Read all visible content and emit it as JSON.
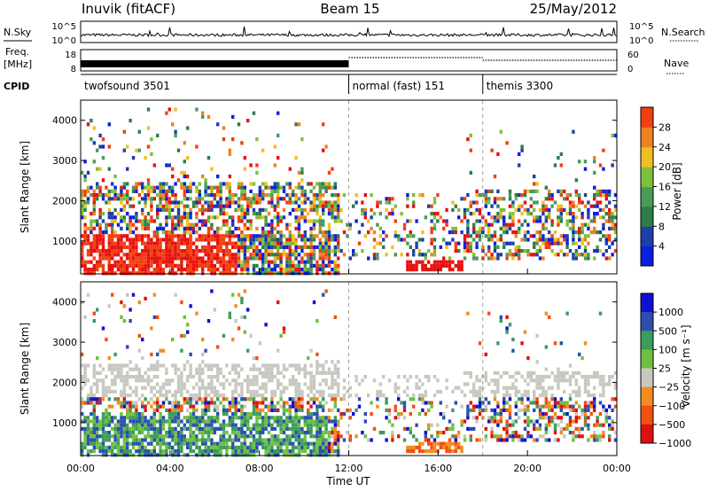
{
  "header": {
    "station": "Inuvik (fitACF)",
    "beam": "Beam 15",
    "date": "25/May/2012"
  },
  "labels": {
    "nsky": "N.Sky",
    "nsearch": "N.Search",
    "freq_line1": "Freq.",
    "freq_line2": "[MHz]",
    "nave": "Nave",
    "cpid": "CPID"
  },
  "colors": {
    "power": [
      "#0b1fe0",
      "#1d3fa8",
      "#2e7d4a",
      "#4a9a5a",
      "#7cc03c",
      "#f0c020",
      "#f08020",
      "#f04010",
      "#e81010"
    ],
    "velocity": [
      "#e01010",
      "#f05010",
      "#f08c20",
      "#c8c8c0",
      "#70c040",
      "#3c9c5c",
      "#2a4fb0",
      "#1010d0"
    ]
  },
  "chart_data": [
    {
      "type": "line",
      "name": "noise-panel",
      "x_range_hours": [
        0,
        24
      ],
      "left_axis": {
        "label": "N.Sky",
        "ticks": [
          "10^5",
          "10^0"
        ]
      },
      "right_axis": {
        "label": "N.Search",
        "ticks": [
          "10^5",
          "10^0"
        ]
      }
    },
    {
      "type": "line",
      "name": "freq-nave-panel",
      "left_axis": {
        "label": "Freq. [MHz]",
        "ticks": [
          "18",
          "8"
        ]
      },
      "right_axis": {
        "label": "Nave",
        "ticks": [
          "60",
          "0"
        ]
      },
      "freq_mhz": [
        {
          "start": 0,
          "end": 12,
          "value": 10.5
        }
      ],
      "nave_series": [
        {
          "start": 12,
          "end": 18,
          "value": 25
        },
        {
          "start": 18,
          "end": 24,
          "value": 23
        }
      ]
    },
    {
      "type": "table",
      "name": "cpid-segments",
      "segments": [
        {
          "start": 0,
          "end": 12,
          "name": "twofsound 3501"
        },
        {
          "start": 12,
          "end": 18,
          "name": "normal (fast) 151"
        },
        {
          "start": 18,
          "end": 24,
          "name": "themis 3300"
        }
      ]
    },
    {
      "type": "heatmap",
      "name": "power-panel",
      "ylabel": "Slant Range [km]",
      "ylim": [
        180,
        4500
      ],
      "yticks": [
        "1000",
        "2000",
        "3000",
        "4000"
      ],
      "colorbar_label": "Power [dB]",
      "colorbar_ticks": [
        "4",
        "8",
        "12",
        "16",
        "20",
        "24",
        "28"
      ]
    },
    {
      "type": "heatmap",
      "name": "velocity-panel",
      "xlabel": "Time UT",
      "ylabel": "Slant Range [km]",
      "ylim": [
        180,
        4500
      ],
      "yticks": [
        "1000",
        "2000",
        "3000",
        "4000"
      ],
      "xticks": [
        "00:00",
        "04:00",
        "08:00",
        "12:00",
        "16:00",
        "20:00",
        "00:00"
      ],
      "colorbar_label": "Velocity [m s⁻¹]",
      "colorbar_ticks": [
        "1000",
        "500",
        "100",
        "25",
        "−25",
        "−100",
        "−500",
        "−1000"
      ]
    }
  ]
}
